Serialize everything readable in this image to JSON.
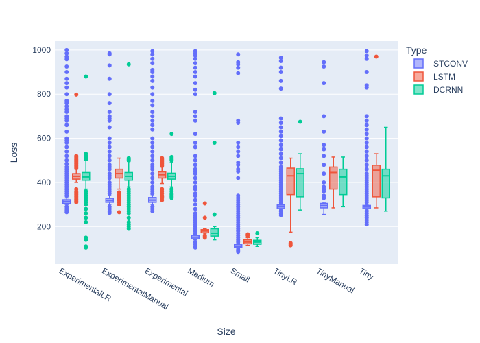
{
  "chart_data": {
    "type": "box",
    "xlabel": "Size",
    "ylabel": "Loss",
    "ylim": [
      30,
      1040
    ],
    "yticks": [
      200,
      400,
      600,
      800,
      1000
    ],
    "categories": [
      "ExperimentalLR",
      "ExperimentalManual",
      "Experimental",
      "Medium",
      "Small",
      "TinyLR",
      "TinyManual",
      "Tiny"
    ],
    "legend": {
      "title": "Type",
      "position": "top-right"
    },
    "grid": true,
    "colors": {
      "plot_bg": "#e5ecf6",
      "grid": "#ffffff",
      "text": "#2a3f5f"
    },
    "series": [
      {
        "name": "STCONV",
        "color": "#636efa",
        "boxes": [
          {
            "q1": 305,
            "median": 314,
            "q3": 322,
            "lower": 300,
            "upper": 330,
            "outliers": [
              1000,
              985,
              970,
              958,
              925,
              900,
              870,
              850,
              830,
              800,
              770,
              760,
              745,
              730,
              720,
              700,
              690,
              680,
              660,
              630,
              600,
              590,
              580,
              560,
              540,
              520,
              500,
              485,
              470,
              460,
              450,
              440,
              430,
              420,
              410,
              400,
              390,
              380,
              370,
              360,
              350,
              340,
              290,
              280,
              272,
              265
            ]
          },
          {
            "q1": 310,
            "median": 318,
            "q3": 328,
            "lower": 300,
            "upper": 340,
            "outliers": [
              985,
              980,
              930,
              870,
              800,
              760,
              720,
              700,
              690,
              680,
              650,
              600,
              580,
              560,
              540,
              520,
              500,
              480,
              470,
              460,
              440,
              430,
              420,
              400,
              390,
              380,
              370,
              360,
              350,
              290,
              280,
              270,
              262
            ]
          },
          {
            "q1": 310,
            "median": 320,
            "q3": 332,
            "lower": 300,
            "upper": 345,
            "outliers": [
              995,
              980,
              960,
              940,
              910,
              900,
              880,
              860,
              830,
              800,
              770,
              750,
              720,
              700,
              680,
              660,
              640,
              600,
              580,
              560,
              540,
              520,
              500,
              480,
              470,
              460,
              440,
              420,
              400,
              380,
              370,
              360,
              350,
              290,
              280,
              270
            ]
          },
          {
            "q1": 145,
            "median": 152,
            "q3": 160,
            "lower": 140,
            "upper": 165,
            "outliers": [
              995,
              985,
              975,
              960,
              940,
              920,
              900,
              880,
              850,
              820,
              800,
              720,
              700,
              680,
              620,
              580,
              560,
              520,
              500,
              480,
              460,
              450,
              440,
              420,
              400,
              380,
              370,
              350,
              340,
              320,
              300,
              280,
              260,
              250,
              240,
              230,
              220,
              210,
              200,
              190,
              180,
              170,
              130,
              120,
              110,
              105
            ]
          },
          {
            "q1": 105,
            "median": 110,
            "q3": 118,
            "lower": 100,
            "upper": 125,
            "outliers": [
              980,
              945,
              935,
              920,
              895,
              680,
              670,
              580,
              560,
              540,
              520,
              490,
              480,
              460,
              450,
              420,
              340,
              330,
              320,
              310,
              300,
              290,
              280,
              270,
              260,
              250,
              240,
              230,
              220,
              210,
              200,
              190,
              180,
              170,
              160,
              150,
              140,
              130,
              95,
              90,
              85
            ]
          },
          {
            "q1": 282,
            "median": 290,
            "q3": 298,
            "lower": 276,
            "upper": 305,
            "outliers": [
              965,
              950,
              920,
              900,
              860,
              825,
              690,
              670,
              650,
              630,
              610,
              590,
              570,
              550,
              530,
              510,
              490,
              470,
              460,
              450,
              440,
              430,
              420,
              410,
              400,
              390,
              380,
              370,
              360,
              350,
              340,
              330,
              320,
              310,
              270,
              260,
              252
            ]
          },
          {
            "q1": 285,
            "median": 295,
            "q3": 305,
            "lower": 255,
            "upper": 310,
            "outliers": [
              945,
              925,
              850,
              700,
              630,
              570,
              550,
              520,
              480,
              440,
              400,
              380,
              370,
              360,
              340,
              330
            ]
          },
          {
            "q1": 282,
            "median": 289,
            "q3": 296,
            "lower": 275,
            "upper": 300,
            "outliers": [
              995,
              975,
              960,
              900,
              840,
              830,
              700,
              680,
              660,
              640,
              620,
              600,
              580,
              560,
              540,
              520,
              500,
              480,
              460,
              440,
              430,
              420,
              410,
              400,
              390,
              380,
              370,
              360,
              350,
              340,
              330,
              320,
              310,
              270,
              260,
              250,
              240,
              230,
              220,
              210
            ]
          }
        ]
      },
      {
        "name": "LSTM",
        "color": "#ef553b",
        "boxes": [
          {
            "q1": 415,
            "median": 428,
            "q3": 440,
            "lower": 400,
            "upper": 460,
            "outliers": [
              798,
              520,
              515,
              510,
              505,
              500,
              495,
              490,
              485,
              480,
              475,
              470,
              465,
              370,
              360,
              355,
              350,
              345,
              340,
              335,
              330,
              325,
              320,
              315,
              310
            ]
          },
          {
            "q1": 420,
            "median": 440,
            "q3": 460,
            "lower": 370,
            "upper": 510,
            "outliers": [
              355,
              345,
              340,
              335,
              330,
              325,
              320,
              310,
              300,
              265
            ]
          },
          {
            "q1": 420,
            "median": 435,
            "q3": 448,
            "lower": 395,
            "upper": 470,
            "outliers": [
              510,
              505,
              500,
              495,
              490,
              485,
              480,
              475,
              370,
              360,
              350,
              340,
              335,
              330,
              320
            ]
          },
          {
            "q1": 172,
            "median": 180,
            "q3": 186,
            "lower": 170,
            "upper": 190,
            "outliers": [
              305,
              240,
              160,
              155,
              150
            ]
          },
          {
            "q1": 122,
            "median": 130,
            "q3": 140,
            "lower": 115,
            "upper": 150,
            "outliers": [
              165,
              160
            ]
          },
          {
            "q1": 345,
            "median": 430,
            "q3": 465,
            "lower": 175,
            "upper": 510,
            "outliers": [
              125,
              120,
              115
            ]
          },
          {
            "q1": 370,
            "median": 445,
            "q3": 470,
            "lower": 285,
            "upper": 515,
            "outliers": []
          },
          {
            "q1": 335,
            "median": 455,
            "q3": 478,
            "lower": 285,
            "upper": 530,
            "outliers": [
              970
            ]
          }
        ]
      },
      {
        "name": "DCRNN",
        "color": "#00cc96",
        "boxes": [
          {
            "q1": 410,
            "median": 425,
            "q3": 445,
            "lower": 370,
            "upper": 500,
            "outliers": [
              880,
              530,
              520,
              515,
              510,
              505,
              360,
              350,
              340,
              330,
              320,
              310,
              300,
              280,
              260,
              240,
              220,
              150,
              140,
              110,
              105
            ]
          },
          {
            "q1": 410,
            "median": 428,
            "q3": 445,
            "lower": 380,
            "upper": 495,
            "outliers": [
              935,
              510,
              505,
              500,
              370,
              360,
              350,
              340,
              330,
              320,
              310,
              300,
              290,
              280,
              270,
              260,
              240,
              220,
              210,
              200,
              190
            ]
          },
          {
            "q1": 415,
            "median": 428,
            "q3": 442,
            "lower": 380,
            "upper": 490,
            "outliers": [
              620,
              515,
              510,
              505,
              500,
              370,
              360,
              350,
              345,
              340,
              335,
              330
            ]
          },
          {
            "q1": 157,
            "median": 170,
            "q3": 190,
            "lower": 140,
            "upper": 200,
            "outliers": [
              805,
              580,
              255
            ]
          },
          {
            "q1": 120,
            "median": 130,
            "q3": 138,
            "lower": 110,
            "upper": 150,
            "outliers": [
              170
            ]
          },
          {
            "q1": 335,
            "median": 440,
            "q3": 462,
            "lower": 275,
            "upper": 530,
            "outliers": [
              675
            ]
          },
          {
            "q1": 345,
            "median": 425,
            "q3": 460,
            "lower": 290,
            "upper": 515,
            "outliers": []
          },
          {
            "q1": 330,
            "median": 430,
            "q3": 460,
            "lower": 270,
            "upper": 650,
            "outliers": []
          }
        ]
      }
    ]
  }
}
